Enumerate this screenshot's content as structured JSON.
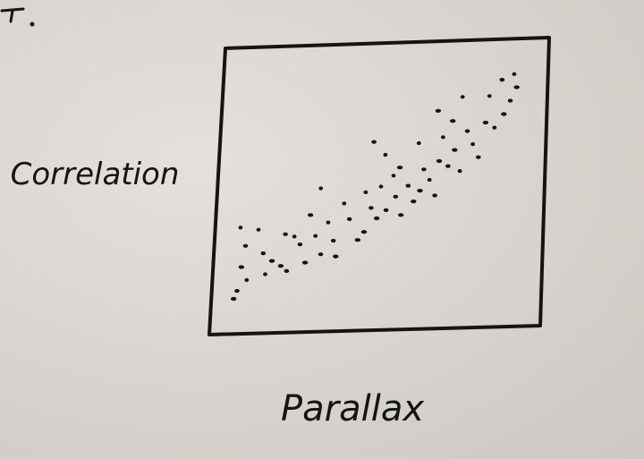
{
  "chart_data": {
    "type": "scatter",
    "title": "",
    "xlabel": "Parallax",
    "ylabel": "Correlation",
    "xlim": [
      0,
      10
    ],
    "ylim": [
      0,
      10
    ],
    "grid": false,
    "series": [
      {
        "points": [
          [
            0.4,
            3.6
          ],
          [
            0.6,
            2.9
          ],
          [
            0.5,
            2.1
          ],
          [
            0.7,
            1.6
          ],
          [
            0.4,
            1.2
          ],
          [
            0.3,
            0.9
          ],
          [
            1.0,
            3.5
          ],
          [
            1.2,
            2.6
          ],
          [
            1.5,
            2.3
          ],
          [
            1.3,
            1.8
          ],
          [
            1.9,
            3.3
          ],
          [
            1.8,
            2.1
          ],
          [
            2.2,
            3.2
          ],
          [
            2.4,
            2.9
          ],
          [
            2.7,
            4.0
          ],
          [
            2.9,
            3.2
          ],
          [
            3.1,
            2.5
          ],
          [
            2.6,
            2.2
          ],
          [
            3.3,
            3.7
          ],
          [
            3.5,
            3.0
          ],
          [
            3.6,
            2.4
          ],
          [
            3.8,
            4.4
          ],
          [
            4.0,
            3.8
          ],
          [
            4.3,
            3.0
          ],
          [
            4.5,
            4.8
          ],
          [
            4.7,
            4.2
          ],
          [
            4.5,
            3.3
          ],
          [
            5.0,
            5.0
          ],
          [
            5.2,
            4.1
          ],
          [
            4.9,
            3.8
          ],
          [
            5.4,
            5.4
          ],
          [
            5.5,
            4.6
          ],
          [
            5.7,
            3.9
          ],
          [
            5.1,
            6.2
          ],
          [
            5.9,
            5.0
          ],
          [
            6.1,
            4.4
          ],
          [
            6.2,
            6.6
          ],
          [
            6.4,
            5.6
          ],
          [
            6.3,
            4.8
          ],
          [
            6.6,
            5.2
          ],
          [
            6.8,
            4.6
          ],
          [
            6.9,
            5.9
          ],
          [
            7.0,
            6.8
          ],
          [
            7.2,
            5.7
          ],
          [
            7.4,
            6.3
          ],
          [
            7.6,
            5.5
          ],
          [
            7.8,
            7.0
          ],
          [
            7.3,
            7.4
          ],
          [
            8.0,
            6.5
          ],
          [
            8.2,
            6.0
          ],
          [
            8.4,
            7.3
          ],
          [
            8.5,
            8.3
          ],
          [
            8.9,
            8.9
          ],
          [
            9.0,
            7.6
          ],
          [
            9.3,
            9.1
          ],
          [
            9.2,
            8.1
          ],
          [
            9.4,
            8.6
          ],
          [
            8.7,
            7.1
          ],
          [
            4.7,
            6.7
          ],
          [
            6.8,
            7.8
          ],
          [
            7.6,
            8.3
          ],
          [
            2.0,
            1.9
          ],
          [
            5.6,
            5.7
          ],
          [
            3.0,
            5.0
          ]
        ]
      }
    ]
  },
  "colors": {
    "ink": "#141414",
    "board": "#dcd7d2"
  }
}
